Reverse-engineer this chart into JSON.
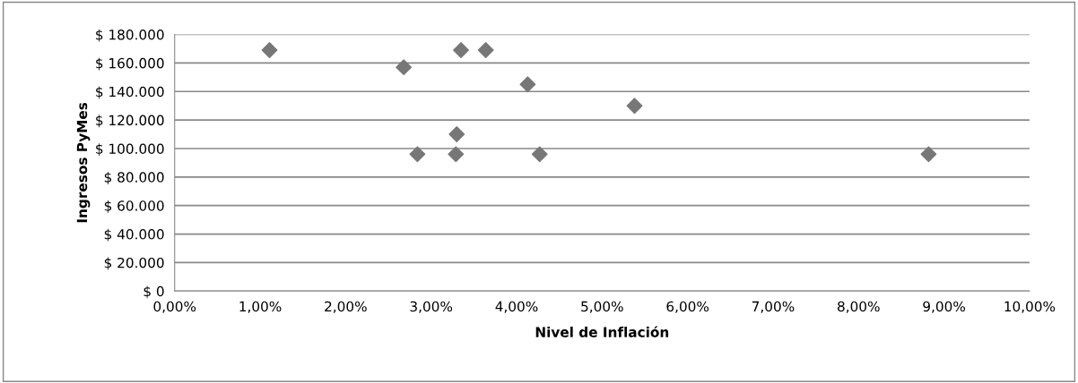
{
  "chart_data": {
    "type": "scatter",
    "xlabel": "Nivel de Inflación",
    "ylabel": "Ingresos PyMes",
    "x": [
      1.11,
      2.68,
      3.35,
      3.64,
      4.13,
      3.3,
      2.84,
      3.29,
      4.27,
      5.38,
      8.82
    ],
    "series": [
      {
        "color": "#777777",
        "values": [
          169000,
          157000,
          169000,
          169000,
          145000,
          110000,
          96000,
          96000,
          96000,
          130000,
          96000
        ]
      }
    ],
    "marker": "diamond",
    "grid": "y",
    "xlim": [
      0,
      10
    ],
    "xticks": [
      {
        "value": 0,
        "label": "0,00%"
      },
      {
        "value": 1,
        "label": "1,00%"
      },
      {
        "value": 2,
        "label": "2,00%"
      },
      {
        "value": 3,
        "label": "3,00%"
      },
      {
        "value": 4,
        "label": "4,00%"
      },
      {
        "value": 5,
        "label": "5,00%"
      },
      {
        "value": 6,
        "label": "6,00%"
      },
      {
        "value": 7,
        "label": "7,00%"
      },
      {
        "value": 8,
        "label": "8,00%"
      },
      {
        "value": 9,
        "label": "9,00%"
      },
      {
        "value": 10,
        "label": "10,00%"
      }
    ],
    "ylim": [
      0,
      180000
    ],
    "yticks": [
      {
        "value": 0,
        "label": "$ 0"
      },
      {
        "value": 20000,
        "label": "$ 20.000"
      },
      {
        "value": 40000,
        "label": "$ 40.000"
      },
      {
        "value": 60000,
        "label": "$ 60.000"
      },
      {
        "value": 80000,
        "label": "$ 80.000"
      },
      {
        "value": 100000,
        "label": "$ 100.000"
      },
      {
        "value": 120000,
        "label": "$ 120.000"
      },
      {
        "value": 140000,
        "label": "$ 140.000"
      },
      {
        "value": 160000,
        "label": "$ 160.000"
      },
      {
        "value": 180000,
        "label": "$ 180.000"
      }
    ]
  }
}
